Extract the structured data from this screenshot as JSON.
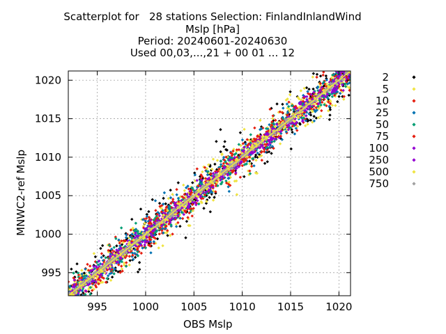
{
  "chart_data": {
    "type": "scatter",
    "title_lines": [
      "Scatterplot for   28 stations Selection: FinlandInlandWind",
      "Mslp [hPa]",
      "Period: 20240601-20240630",
      "Used 00,03,...,21 + 00 01 ... 12"
    ],
    "xlabel": "OBS Mslp",
    "ylabel": "MNWC2-ref Mslp",
    "xlim": [
      992,
      1021.2
    ],
    "ylim": [
      992,
      1021.2
    ],
    "xticks": [
      995,
      1000,
      1005,
      1010,
      1015,
      1020
    ],
    "yticks": [
      995,
      1000,
      1005,
      1010,
      1015,
      1020
    ],
    "grid": true,
    "legend_position": "right",
    "diagonal_line": true,
    "series": [
      {
        "name": "2",
        "color": "#000000",
        "spread": 1.6
      },
      {
        "name": "5",
        "color": "#f0e442",
        "spread": 1.4
      },
      {
        "name": "10",
        "color": "#e51e10",
        "spread": 1.2
      },
      {
        "name": "25",
        "color": "#0072b2",
        "spread": 1.0
      },
      {
        "name": "50",
        "color": "#009e73",
        "spread": 0.85
      },
      {
        "name": "75",
        "color": "#e51e10",
        "spread": 0.7
      },
      {
        "name": "100",
        "color": "#9400d3",
        "spread": 0.55
      },
      {
        "name": "250",
        "color": "#9400d3",
        "spread": 0.45
      },
      {
        "name": "500",
        "color": "#f0e442",
        "spread": 0.3
      },
      {
        "name": "750",
        "color": "#a0a0a0",
        "spread": 0.15
      }
    ]
  }
}
